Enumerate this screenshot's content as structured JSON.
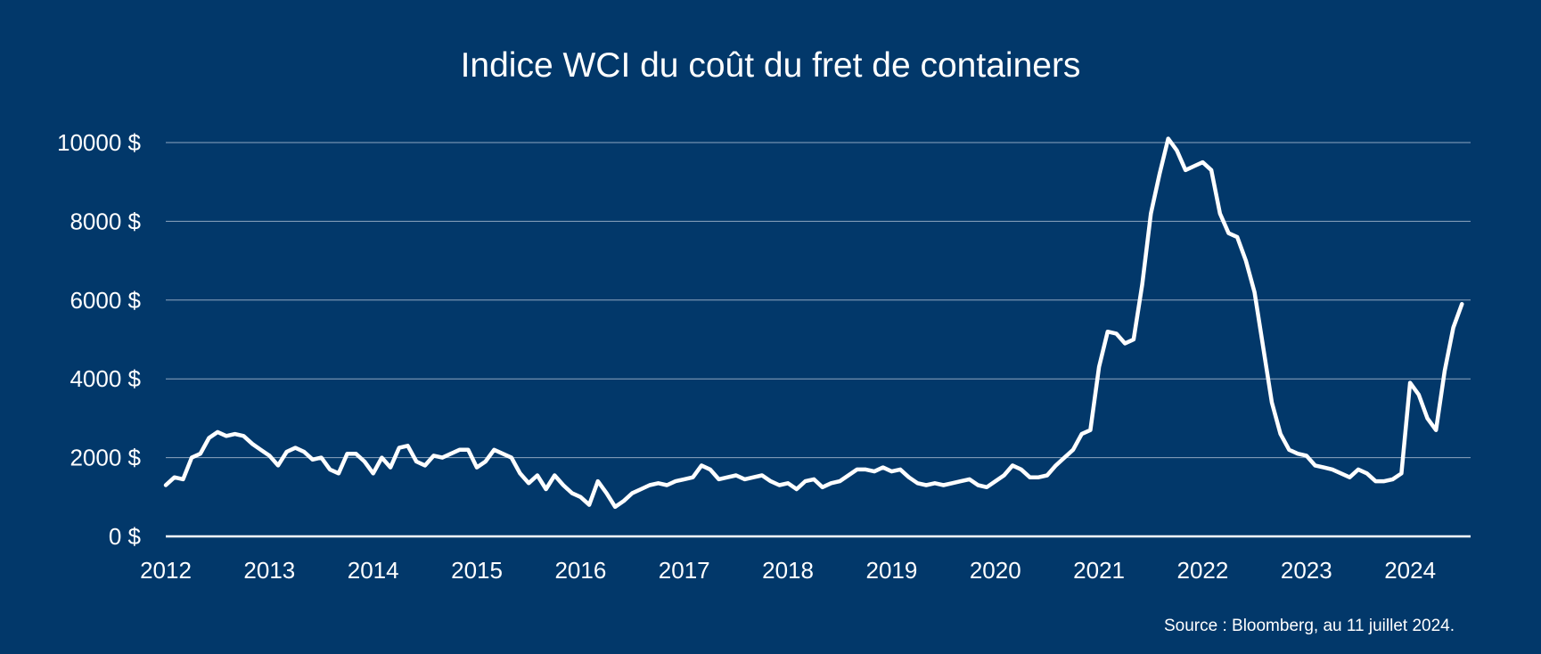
{
  "colors": {
    "background": "#02386a",
    "line": "#ffffff",
    "grid": "#8fa6c0",
    "text": "#ffffff"
  },
  "chart_data": {
    "type": "line",
    "title": "Indice WCI du coût du fret de containers",
    "source": "Source : Bloomberg, au 11 juillet 2024.",
    "xlabel": "",
    "ylabel": "",
    "ylim": [
      0,
      10000
    ],
    "xlim": [
      "2012-01",
      "2024-08"
    ],
    "y_ticks": [
      0,
      2000,
      4000,
      6000,
      8000,
      10000
    ],
    "y_tick_labels": [
      "0 $",
      "2000 $",
      "4000 $",
      "6000 $",
      "8000 $",
      "10000 $"
    ],
    "x_tick_labels": [
      "2012",
      "2013",
      "2014",
      "2015",
      "2016",
      "2017",
      "2018",
      "2019",
      "2020",
      "2021",
      "2022",
      "2023",
      "2024"
    ],
    "grid": "horizontal",
    "legend": "none",
    "series": [
      {
        "x": [
          "2012-01",
          "2012-02",
          "2012-03",
          "2012-04",
          "2012-05",
          "2012-06",
          "2012-07",
          "2012-08",
          "2012-09",
          "2012-10",
          "2012-11",
          "2012-12",
          "2013-01",
          "2013-02",
          "2013-03",
          "2013-04",
          "2013-05",
          "2013-06",
          "2013-07",
          "2013-08",
          "2013-09",
          "2013-10",
          "2013-11",
          "2013-12",
          "2014-01",
          "2014-02",
          "2014-03",
          "2014-04",
          "2014-05",
          "2014-06",
          "2014-07",
          "2014-08",
          "2014-09",
          "2014-10",
          "2014-11",
          "2014-12",
          "2015-01",
          "2015-02",
          "2015-03",
          "2015-04",
          "2015-05",
          "2015-06",
          "2015-07",
          "2015-08",
          "2015-09",
          "2015-10",
          "2015-11",
          "2015-12",
          "2016-01",
          "2016-02",
          "2016-03",
          "2016-04",
          "2016-05",
          "2016-06",
          "2016-07",
          "2016-08",
          "2016-09",
          "2016-10",
          "2016-11",
          "2016-12",
          "2017-01",
          "2017-02",
          "2017-03",
          "2017-04",
          "2017-05",
          "2017-06",
          "2017-07",
          "2017-08",
          "2017-09",
          "2017-10",
          "2017-11",
          "2017-12",
          "2018-01",
          "2018-02",
          "2018-03",
          "2018-04",
          "2018-05",
          "2018-06",
          "2018-07",
          "2018-08",
          "2018-09",
          "2018-10",
          "2018-11",
          "2018-12",
          "2019-01",
          "2019-02",
          "2019-03",
          "2019-04",
          "2019-05",
          "2019-06",
          "2019-07",
          "2019-08",
          "2019-09",
          "2019-10",
          "2019-11",
          "2019-12",
          "2020-01",
          "2020-02",
          "2020-03",
          "2020-04",
          "2020-05",
          "2020-06",
          "2020-07",
          "2020-08",
          "2020-09",
          "2020-10",
          "2020-11",
          "2020-12",
          "2021-01",
          "2021-02",
          "2021-03",
          "2021-04",
          "2021-05",
          "2021-06",
          "2021-07",
          "2021-08",
          "2021-09",
          "2021-10",
          "2021-11",
          "2021-12",
          "2022-01",
          "2022-02",
          "2022-03",
          "2022-04",
          "2022-05",
          "2022-06",
          "2022-07",
          "2022-08",
          "2022-09",
          "2022-10",
          "2022-11",
          "2022-12",
          "2023-01",
          "2023-02",
          "2023-03",
          "2023-04",
          "2023-05",
          "2023-06",
          "2023-07",
          "2023-08",
          "2023-09",
          "2023-10",
          "2023-11",
          "2023-12",
          "2024-01",
          "2024-02",
          "2024-03",
          "2024-04",
          "2024-05",
          "2024-06",
          "2024-07"
        ],
        "values": [
          1300,
          1500,
          1450,
          2000,
          2100,
          2500,
          2650,
          2550,
          2600,
          2550,
          2350,
          2200,
          2050,
          1800,
          2150,
          2250,
          2150,
          1950,
          2000,
          1700,
          1600,
          2100,
          2100,
          1900,
          1600,
          2000,
          1750,
          2250,
          2300,
          1900,
          1800,
          2050,
          2000,
          2100,
          2200,
          2200,
          1750,
          1900,
          2200,
          2100,
          2000,
          1600,
          1350,
          1550,
          1200,
          1550,
          1300,
          1100,
          1000,
          800,
          1400,
          1100,
          750,
          900,
          1100,
          1200,
          1300,
          1350,
          1300,
          1400,
          1450,
          1500,
          1800,
          1700,
          1450,
          1500,
          1550,
          1450,
          1500,
          1550,
          1400,
          1300,
          1350,
          1200,
          1400,
          1450,
          1250,
          1350,
          1400,
          1550,
          1700,
          1700,
          1650,
          1750,
          1650,
          1700,
          1500,
          1350,
          1300,
          1350,
          1300,
          1350,
          1400,
          1450,
          1300,
          1250,
          1400,
          1550,
          1800,
          1700,
          1500,
          1500,
          1550,
          1800,
          2000,
          2200,
          2600,
          2700,
          4300,
          5200,
          5150,
          4900,
          5000,
          6400,
          8200,
          9200,
          10100,
          9800,
          9300,
          9400,
          9500,
          9300,
          8200,
          7700,
          7600,
          7000,
          6200,
          4800,
          3400,
          2600,
          2200,
          2100,
          2050,
          1800,
          1750,
          1700,
          1600,
          1500,
          1700,
          1600,
          1400,
          1400,
          1450,
          1600,
          3900,
          3600,
          3000,
          2700,
          4200,
          5300,
          5900
        ]
      }
    ]
  }
}
